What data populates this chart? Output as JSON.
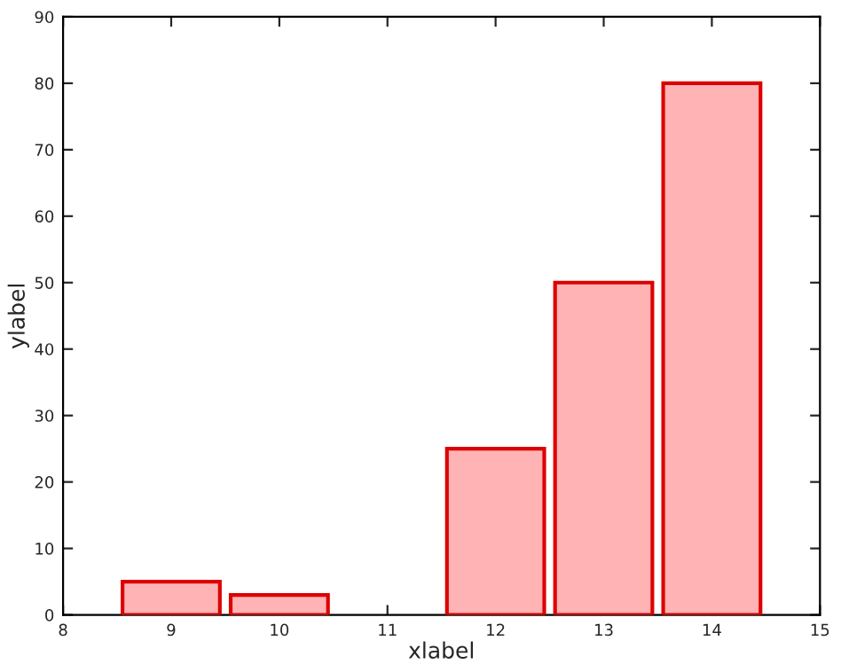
{
  "chart_data": {
    "type": "bar",
    "xlabel": "xlabel",
    "ylabel": "ylabel",
    "x": [
      9,
      10,
      12,
      13,
      14
    ],
    "values": [
      5,
      3,
      25,
      50,
      80
    ],
    "color": "#ffb3b5",
    "xlim": [
      8,
      15
    ],
    "xticks": [
      8,
      9,
      10,
      11,
      12,
      13,
      14,
      15
    ],
    "ylim": [
      0,
      90
    ],
    "yticks": [
      0,
      10,
      20,
      30,
      40,
      50,
      60,
      70,
      80,
      90
    ],
    "grid": false
  }
}
